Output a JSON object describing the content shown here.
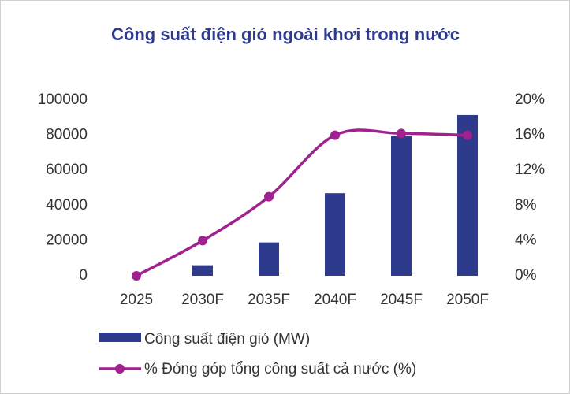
{
  "chart_data": {
    "type": "bar_line",
    "title": "Công suất điện gió ngoài khơi trong nước",
    "categories": [
      "2025",
      "2030F",
      "2035F",
      "2040F",
      "2045F",
      "2050F"
    ],
    "series": [
      {
        "name": "Công suất điện gió (MW)",
        "type": "bar",
        "color": "#2e3a8c",
        "values": [
          0,
          6000,
          19000,
          47000,
          79500,
          91500
        ]
      },
      {
        "name": "% Đóng góp tổng công suất cả nước (%)",
        "type": "line",
        "axis": "y2",
        "color": "#a0228f",
        "values": [
          0,
          4,
          9,
          16,
          16.2,
          16
        ]
      }
    ],
    "ylim": [
      0,
      100000
    ],
    "yticks": [
      0,
      20000,
      40000,
      60000,
      80000,
      100000
    ],
    "y2lim": [
      0,
      20
    ],
    "y2ticks": [
      {
        "value": 0,
        "label": "0%"
      },
      {
        "value": 4,
        "label": "4%"
      },
      {
        "value": 8,
        "label": "8%"
      },
      {
        "value": 12,
        "label": "12%"
      },
      {
        "value": 16,
        "label": "16%"
      },
      {
        "value": 20,
        "label": "20%"
      }
    ],
    "grid": false,
    "legend": "bottom"
  }
}
